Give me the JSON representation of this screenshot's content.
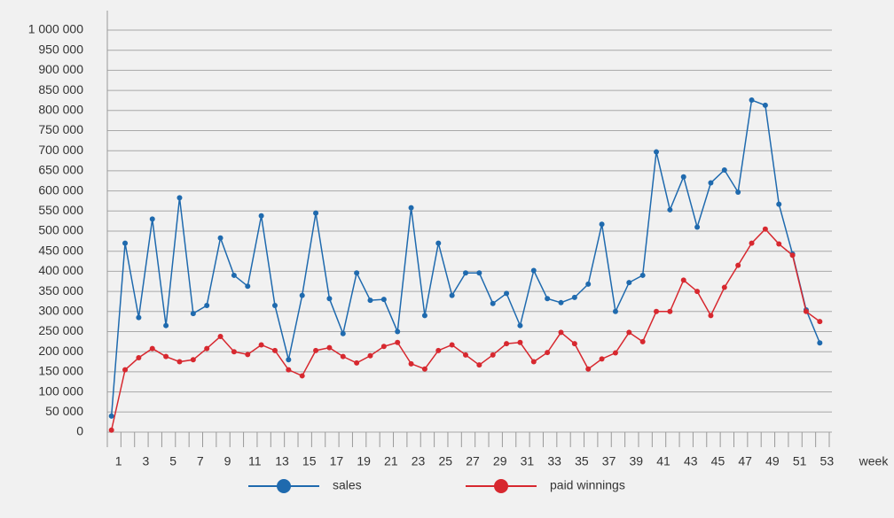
{
  "chart_data": {
    "type": "line",
    "categories": [
      "1",
      null,
      "3",
      null,
      "5",
      null,
      "7",
      null,
      "9",
      null,
      "11",
      null,
      "13",
      null,
      "15",
      null,
      "17",
      null,
      "19",
      null,
      "21",
      null,
      "23",
      null,
      "25",
      null,
      "27",
      null,
      "29",
      null,
      "31",
      null,
      "33",
      null,
      "35",
      null,
      "37",
      null,
      "39",
      null,
      "41",
      null,
      "43",
      null,
      "45",
      null,
      "47",
      null,
      "49",
      null,
      "51",
      null,
      "53"
    ],
    "xlabel": "week",
    "series": [
      {
        "name": "sales",
        "color": "#1f6aae",
        "values": [
          40000,
          470000,
          285000,
          530000,
          265000,
          583000,
          295000,
          315000,
          483000,
          390000,
          363000,
          538000,
          315000,
          180000,
          340000,
          545000,
          332000,
          245000,
          396000,
          328000,
          330000,
          250000,
          558000,
          290000,
          470000,
          340000,
          396000,
          396000,
          320000,
          345000,
          265000,
          402000,
          332000,
          322000,
          335000,
          368000,
          517000,
          300000,
          372000,
          390000,
          697000,
          553000,
          635000,
          510000,
          620000,
          652000,
          597000,
          826000,
          813000,
          567000,
          443000,
          304000,
          222000
        ]
      },
      {
        "name": "paid winnings",
        "color": "#d7282f",
        "values": [
          5000,
          155000,
          185000,
          208000,
          188000,
          175000,
          180000,
          208000,
          238000,
          200000,
          193000,
          217000,
          203000,
          155000,
          140000,
          203000,
          210000,
          188000,
          172000,
          190000,
          213000,
          223000,
          170000,
          157000,
          203000,
          217000,
          192000,
          167000,
          192000,
          220000,
          223000,
          175000,
          198000,
          248000,
          220000,
          157000,
          182000,
          197000,
          248000,
          225000,
          300000,
          300000,
          378000,
          350000,
          290000,
          360000,
          415000,
          470000,
          505000,
          468000,
          440000,
          300000,
          275000
        ]
      }
    ],
    "ylim": [
      0,
      1000000
    ],
    "yticks": [
      0,
      {
        "value": 50000,
        "label": "50 000"
      },
      {
        "value": 100000,
        "label": "100 000"
      },
      {
        "value": 150000,
        "label": "150 000"
      },
      {
        "value": 200000,
        "label": "200 000"
      },
      {
        "value": 250000,
        "label": "250 000"
      },
      {
        "value": 300000,
        "label": "300 000"
      },
      {
        "value": 350000,
        "label": "350 000"
      },
      {
        "value": 400000,
        "label": "400 000"
      },
      {
        "value": 450000,
        "label": "450 000"
      },
      {
        "value": 500000,
        "label": "500 000"
      },
      {
        "value": 550000,
        "label": "550 000"
      },
      {
        "value": 600000,
        "label": "600 000"
      },
      {
        "value": 650000,
        "label": "650 000"
      },
      {
        "value": 700000,
        "label": "700 000"
      },
      {
        "value": 750000,
        "label": "750 000"
      },
      {
        "value": 800000,
        "label": "800 000"
      },
      {
        "value": 850000,
        "label": "850 000"
      },
      {
        "value": 900000,
        "label": "900 000"
      },
      {
        "value": 950000,
        "label": "950 000"
      },
      {
        "value": 1000000,
        "label": "1 000 000"
      }
    ],
    "grid": true
  }
}
